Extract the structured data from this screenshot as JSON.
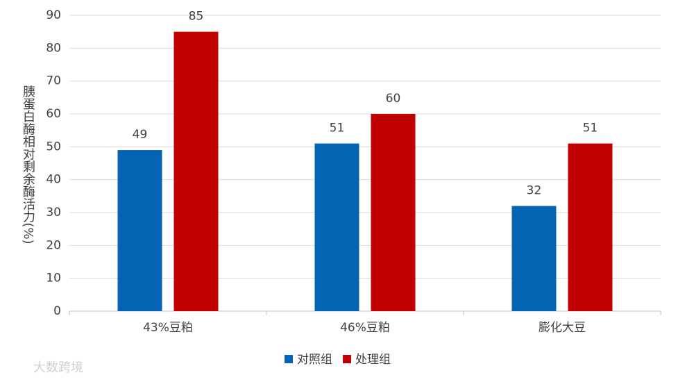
{
  "chart_data": {
    "type": "bar",
    "y_label": "胰蛋白酶相对剩余酶活力(%)",
    "categories": [
      "43%豆粕",
      "46%豆粕",
      "膨化大豆"
    ],
    "series": [
      {
        "name": "对照组",
        "color": "#0563b3",
        "values": [
          49,
          51,
          32
        ]
      },
      {
        "name": "处理组",
        "color": "#c00000",
        "values": [
          85,
          60,
          51
        ]
      }
    ],
    "ylim": [
      0,
      90
    ],
    "yticks": [
      0,
      10,
      20,
      30,
      40,
      50,
      60,
      70,
      80,
      90
    ],
    "grid": true,
    "legend": "bottom",
    "watermark": "大数跨境"
  }
}
